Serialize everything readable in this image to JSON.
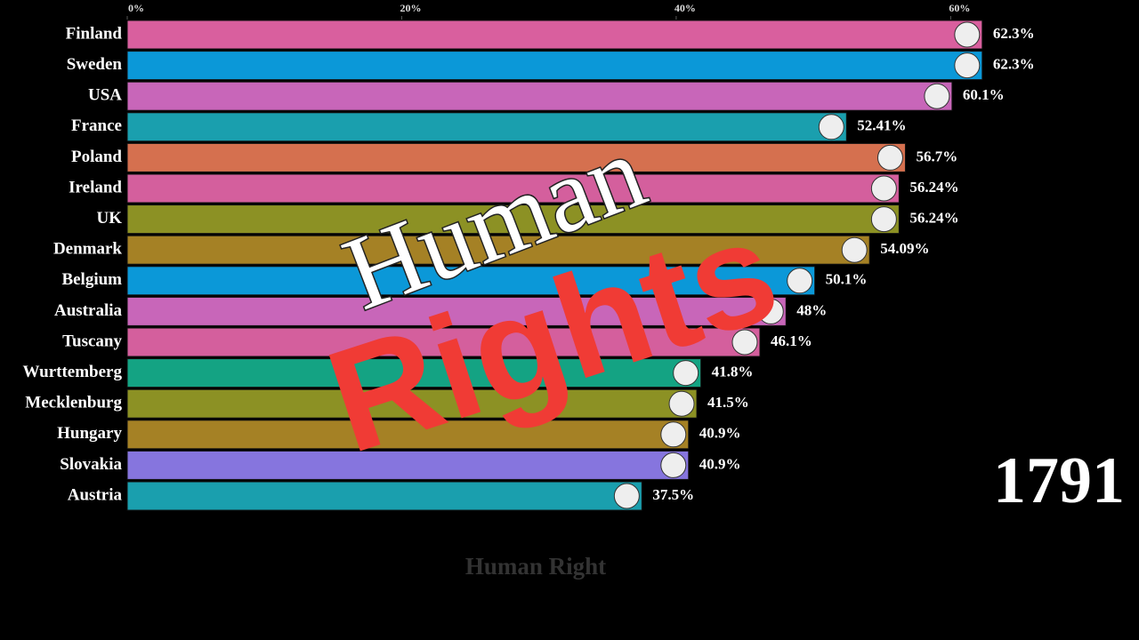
{
  "chart_data": {
    "type": "bar",
    "orientation": "horizontal",
    "categories": [
      "Finland",
      "Sweden",
      "USA",
      "France",
      "Poland",
      "Ireland",
      "UK",
      "Denmark",
      "Belgium",
      "Australia",
      "Tuscany",
      "Wurttemberg",
      "Mecklenburg",
      "Hungary",
      "Slovakia",
      "Austria"
    ],
    "values": [
      62.3,
      62.3,
      60.1,
      52.41,
      56.7,
      56.24,
      56.24,
      54.09,
      50.1,
      48,
      46.1,
      41.8,
      41.5,
      40.9,
      40.9,
      37.5
    ],
    "value_labels": [
      "62.3%",
      "62.3%",
      "60.1%",
      "52.41%",
      "56.7%",
      "56.24%",
      "56.24%",
      "54.09%",
      "50.1%",
      "48%",
      "46.1%",
      "41.8%",
      "41.5%",
      "40.9%",
      "40.9%",
      "37.5%"
    ],
    "colors": [
      "#d95f9e",
      "#0b98d8",
      "#c866b9",
      "#1a9fae",
      "#d5704f",
      "#d45f9d",
      "#8c9124",
      "#a58125",
      "#0b98d8",
      "#c866b9",
      "#d45f9d",
      "#14a383",
      "#8c9124",
      "#a58125",
      "#8675de",
      "#1a9fae"
    ],
    "xlim": [
      0,
      60.95
    ],
    "xticks": [
      {
        "value": 0,
        "label": "0%"
      },
      {
        "value": 20,
        "label": "20%"
      },
      {
        "value": 40,
        "label": "40%"
      },
      {
        "value": 60,
        "label": "60%"
      }
    ],
    "year": "1791",
    "caption": "Human Right",
    "overlay": [
      "Human",
      "Rights"
    ]
  }
}
